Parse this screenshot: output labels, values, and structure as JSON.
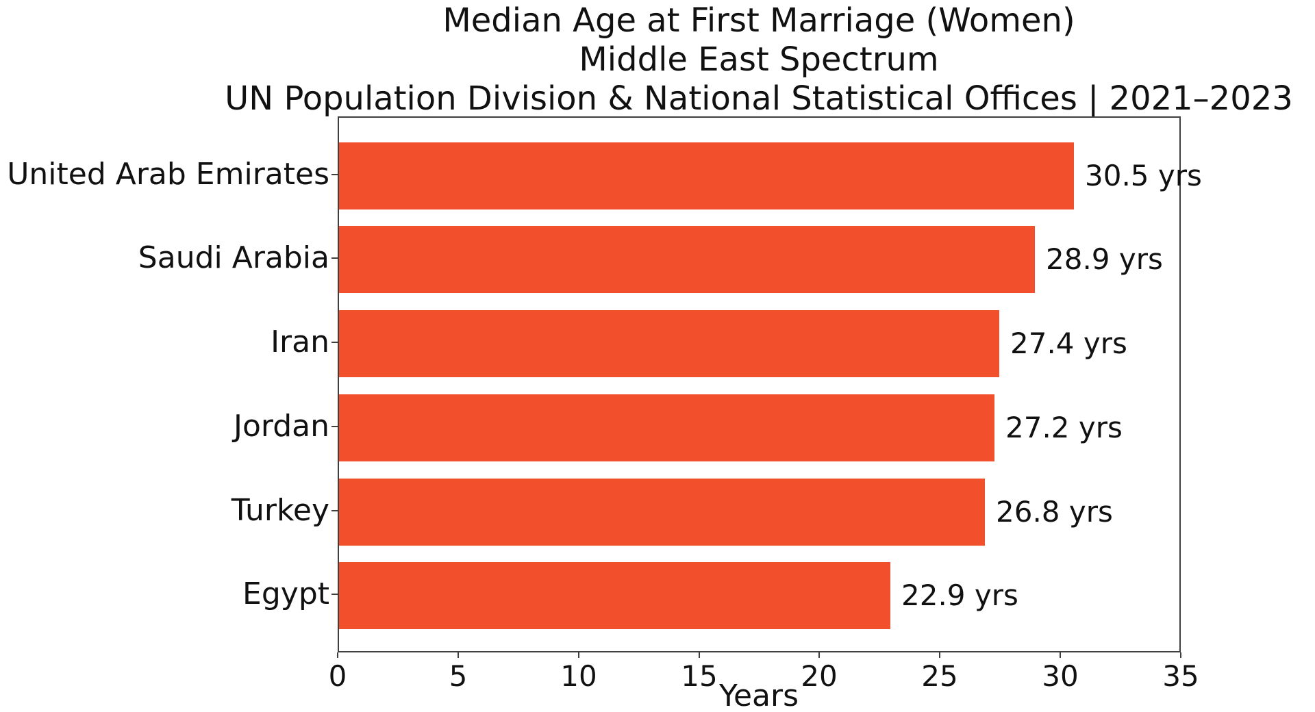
{
  "figure": {
    "background": "#ffffff"
  },
  "chart_data": {
    "type": "bar",
    "orientation": "horizontal",
    "title": "Median Age at First Marriage (Women)",
    "subtitle": "Middle East Spectrum",
    "source": "UN Population Division & National Statistical Offices | 2021–2023",
    "categories": [
      "United Arab Emirates",
      "Saudi Arabia",
      "Iran",
      "Jordan",
      "Turkey",
      "Egypt"
    ],
    "values": [
      30.5,
      28.9,
      27.4,
      27.2,
      26.8,
      22.9
    ],
    "value_labels": [
      "30.5 yrs",
      "28.9 yrs",
      "27.4 yrs",
      "27.2 yrs",
      "26.8 yrs",
      "22.9 yrs"
    ],
    "xlabel": "Years",
    "xlim": [
      0,
      35
    ],
    "xticks": [
      "0",
      "5",
      "10",
      "15",
      "20",
      "25",
      "30",
      "35"
    ],
    "bar_color": "#F2502C",
    "axis_color": "#3f3f3f",
    "text_color": "#111111",
    "grid": false,
    "legend": null,
    "bar_height_fraction": 0.8,
    "outer_pad_units": 0.29
  }
}
